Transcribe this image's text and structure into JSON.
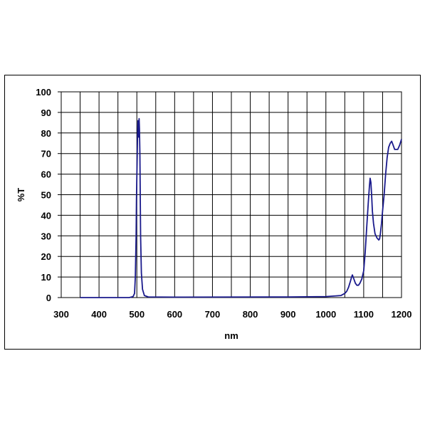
{
  "chart_data": {
    "type": "line",
    "title": "",
    "xlabel": "nm",
    "ylabel": "%T",
    "xlim": [
      300,
      1200
    ],
    "ylim": [
      0,
      100
    ],
    "x_major_ticks": [
      300,
      400,
      500,
      600,
      700,
      800,
      900,
      1000,
      1100,
      1200
    ],
    "x_grid_step": 50,
    "y_ticks": [
      0,
      10,
      20,
      30,
      40,
      50,
      60,
      70,
      80,
      90,
      100
    ],
    "grid": true,
    "legend": "none",
    "line_color": "#1a1a8c",
    "series": [
      {
        "x": [
          350,
          480,
          490,
          494,
          496,
          498,
          499,
          500,
          501,
          502,
          503,
          504,
          505,
          506,
          507,
          508,
          509,
          510,
          512,
          515,
          520,
          530,
          600,
          900,
          1000,
          1040,
          1050,
          1055,
          1060,
          1065,
          1068,
          1070,
          1074,
          1078,
          1082,
          1086,
          1090,
          1095,
          1100,
          1104,
          1108,
          1112,
          1115,
          1117,
          1119,
          1121,
          1123,
          1126,
          1130,
          1135,
          1140,
          1142,
          1144,
          1147,
          1150,
          1154,
          1158,
          1162,
          1166,
          1170,
          1174,
          1178,
          1182,
          1186,
          1190,
          1195,
          1200
        ],
        "y": [
          0,
          0,
          0.5,
          2,
          10,
          30,
          48,
          58,
          70,
          80,
          86,
          84,
          78,
          87,
          82,
          70,
          50,
          30,
          12,
          4,
          1,
          0.3,
          0.2,
          0.3,
          0.5,
          1,
          2,
          3,
          5,
          8,
          10,
          11,
          9,
          7,
          6,
          6,
          7,
          9,
          13,
          22,
          34,
          46,
          54,
          58,
          56,
          50,
          42,
          36,
          31,
          29,
          28,
          28.5,
          31,
          36,
          42,
          50,
          60,
          68,
          73,
          75,
          76,
          74,
          72,
          72,
          72,
          74,
          77
        ]
      }
    ]
  }
}
